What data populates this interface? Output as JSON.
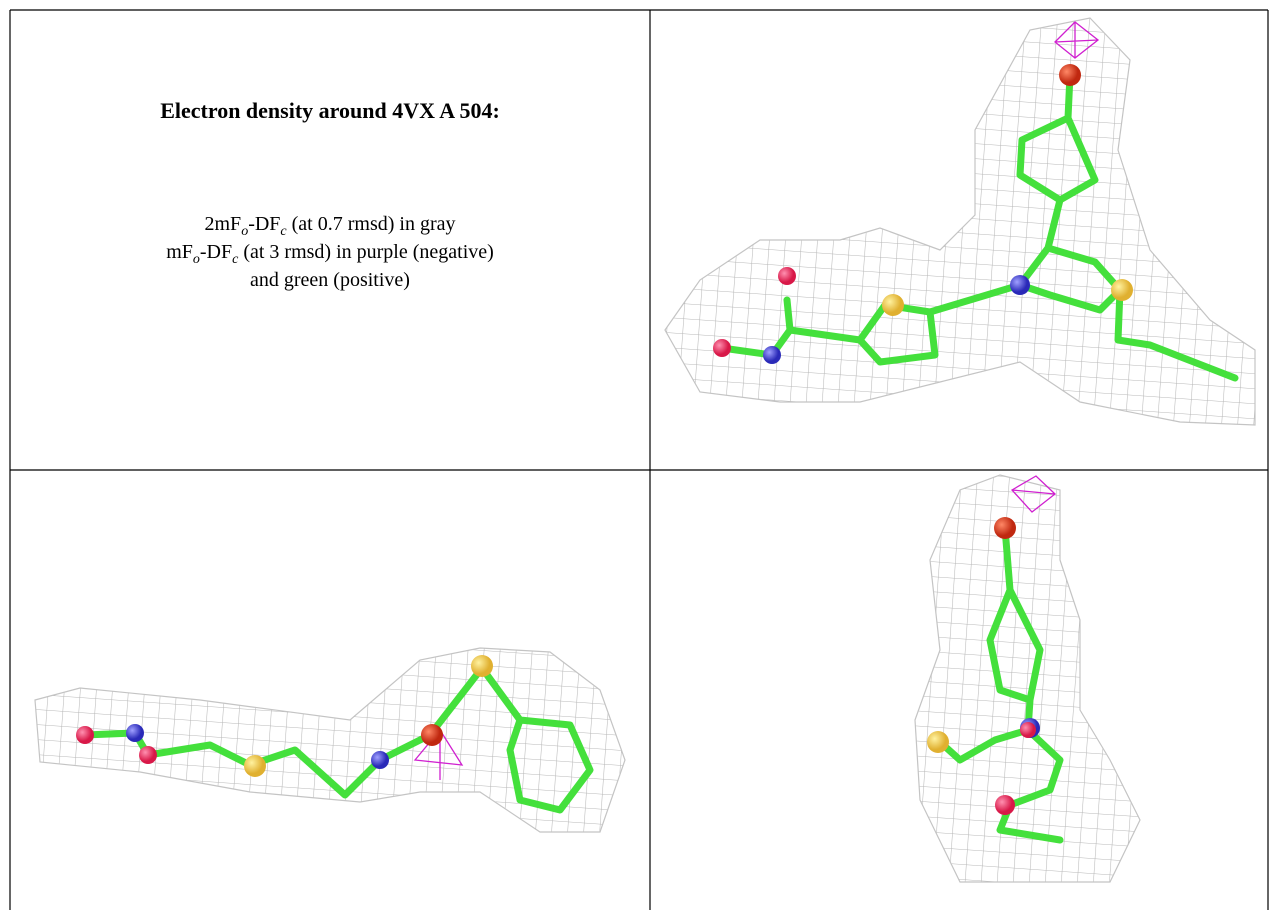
{
  "caption": {
    "title": "Electron density around 4VX A 504:",
    "lines": [
      [
        "2mF",
        "o",
        "-DF",
        "c",
        " (at 0.7 rmsd) in gray"
      ],
      [
        "mF",
        "o",
        "-DF",
        "c",
        " (at 3 rmsd) in purple (negative)"
      ],
      [
        "and green (positive)"
      ]
    ]
  }
}
